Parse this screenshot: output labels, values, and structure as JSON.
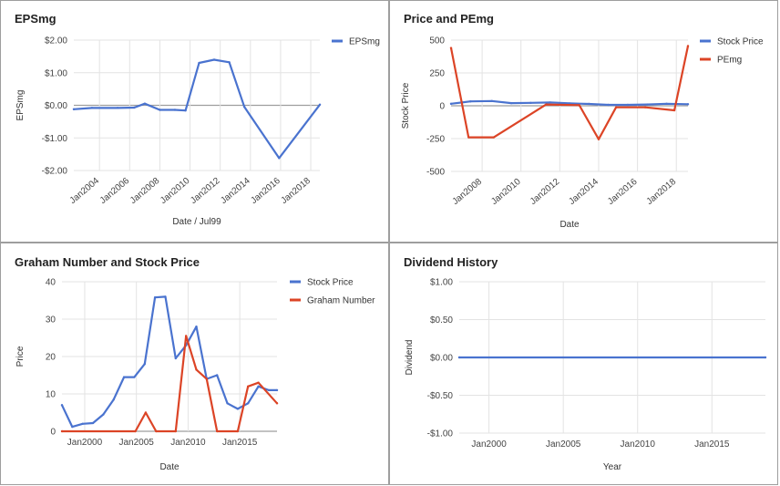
{
  "colors": {
    "blue": "#4a73cf",
    "red": "#dc4426",
    "grid": "#e3e3e3",
    "zero": "#9e9e9e"
  },
  "chart_data": [
    {
      "type": "line",
      "title": "EPSmg",
      "xlabel": "Date / Jul99",
      "ylabel": "EPSmg",
      "ylim": [
        -2,
        2
      ],
      "xlim": [
        2002.3,
        2018.6
      ],
      "yticks": [
        -2,
        -1,
        0,
        1,
        2
      ],
      "ytick_labels": [
        "-$2.00",
        "-$1.00",
        "$0.00",
        "$1.00",
        "$2.00"
      ],
      "xticks": [
        2004,
        2006,
        2008,
        2010,
        2012,
        2014,
        2016,
        2018
      ],
      "xtick_labels": [
        "Jan2004",
        "Jan2006",
        "Jan2008",
        "Jan2010",
        "Jan2012",
        "Jan2014",
        "Jan2016",
        "Jan2018"
      ],
      "legend_position": "top-right",
      "series": [
        {
          "name": "EPSmg",
          "color": "#4a73cf",
          "x": [
            2002.3,
            2003.5,
            2005.2,
            2006.3,
            2007.0,
            2008.0,
            2009.0,
            2009.7,
            2010.6,
            2011.6,
            2012.6,
            2013.6,
            2015.9,
            2018.6
          ],
          "y": [
            -0.12,
            -0.08,
            -0.08,
            -0.07,
            0.05,
            -0.14,
            -0.14,
            -0.16,
            1.3,
            1.4,
            1.32,
            -0.05,
            -1.62,
            0.02
          ]
        }
      ]
    },
    {
      "type": "line",
      "title": "Price and PEmg",
      "xlabel": "Date",
      "ylabel": "Stock Price",
      "ylim": [
        -500,
        500
      ],
      "xlim": [
        2006.4,
        2018.6
      ],
      "yticks": [
        -500,
        -250,
        0,
        250,
        500
      ],
      "ytick_labels": [
        "-500",
        "-250",
        "0",
        "250",
        "500"
      ],
      "xticks": [
        2008,
        2010,
        2012,
        2014,
        2016,
        2018
      ],
      "xtick_labels": [
        "Jan2008",
        "Jan2010",
        "Jan2012",
        "Jan2014",
        "Jan2016",
        "Jan2018"
      ],
      "legend_position": "top-right",
      "series": [
        {
          "name": "Stock Price",
          "color": "#4a73cf",
          "x": [
            2006.4,
            2007.4,
            2008.5,
            2009.5,
            2010.5,
            2011.5,
            2012.5,
            2013.5,
            2014.5,
            2015.5,
            2016.5,
            2017.5,
            2018.6
          ],
          "y": [
            15,
            33,
            36,
            20,
            22,
            25,
            18,
            14,
            7,
            7,
            10,
            15,
            12
          ]
        },
        {
          "name": "PEmg",
          "color": "#dc4426",
          "x": [
            2006.4,
            2007.3,
            2008.6,
            2011.3,
            2013.0,
            2014.0,
            2014.9,
            2016.4,
            2017.9,
            2018.6
          ],
          "y": [
            440,
            -240,
            -240,
            10,
            5,
            -255,
            -12,
            -12,
            -35,
            455
          ]
        }
      ]
    },
    {
      "type": "line",
      "title": "Graham Number and Stock Price",
      "xlabel": "Date",
      "ylabel": "Price",
      "ylim": [
        0,
        40
      ],
      "xlim": [
        1997.8,
        2018.6
      ],
      "yticks": [
        0,
        10,
        20,
        30,
        40
      ],
      "ytick_labels": [
        "0",
        "10",
        "20",
        "30",
        "40"
      ],
      "xticks": [
        2000,
        2005,
        2010,
        2015
      ],
      "xtick_labels": [
        "Jan2000",
        "Jan2005",
        "Jan2010",
        "Jan2015"
      ],
      "legend_position": "top-right",
      "series": [
        {
          "name": "Stock Price",
          "color": "#4a73cf",
          "x": [
            1997.8,
            1998.8,
            1999.8,
            2000.8,
            2001.8,
            2002.8,
            2003.8,
            2004.8,
            2005.8,
            2006.8,
            2007.8,
            2008.8,
            2009.8,
            2010.8,
            2011.8,
            2012.8,
            2013.8,
            2014.8,
            2015.8,
            2016.8,
            2017.8,
            2018.6
          ],
          "y": [
            7,
            1.2,
            2,
            2.2,
            4.5,
            8.5,
            14.5,
            14.5,
            18,
            35.8,
            36,
            19.5,
            23,
            28,
            14,
            15,
            7.5,
            6,
            7.5,
            12,
            11,
            11
          ]
        },
        {
          "name": "Graham Number",
          "color": "#dc4426",
          "x": [
            1997.8,
            2004.9,
            2005.9,
            2006.9,
            2008.8,
            2009.8,
            2010.8,
            2011.8,
            2012.8,
            2014.8,
            2015.8,
            2016.8,
            2018.6
          ],
          "y": [
            0,
            0,
            5,
            0,
            0,
            25.5,
            16.5,
            14,
            0,
            0,
            12,
            13,
            7.5
          ]
        }
      ]
    },
    {
      "type": "line",
      "title": "Dividend History",
      "xlabel": "Year",
      "ylabel": "Dividend",
      "ylim": [
        -1,
        1
      ],
      "xlim": [
        1998.0,
        2018.6
      ],
      "yticks": [
        -1,
        -0.5,
        0,
        0.5,
        1
      ],
      "ytick_labels": [
        "-$1.00",
        "-$0.50",
        "$0.00",
        "$0.50",
        "$1.00"
      ],
      "xticks": [
        2000,
        2005,
        2010,
        2015
      ],
      "xtick_labels": [
        "Jan2000",
        "Jan2005",
        "Jan2010",
        "Jan2015"
      ],
      "legend_position": "none",
      "series": [
        {
          "name": "",
          "color": "#4a73cf",
          "x": [
            1998.0,
            2018.6
          ],
          "y": [
            0,
            0
          ]
        }
      ]
    }
  ]
}
